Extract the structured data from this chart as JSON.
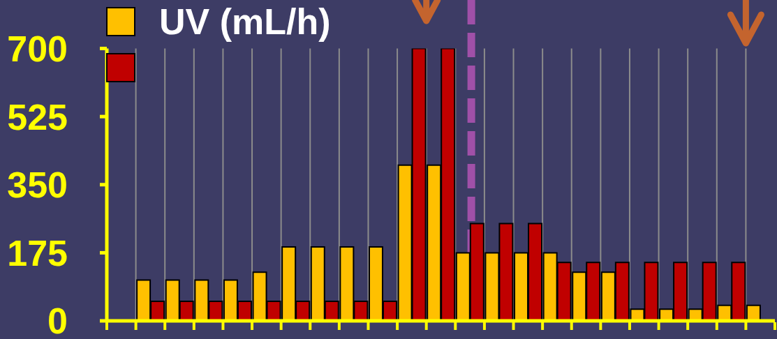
{
  "chart_data": {
    "type": "bar",
    "categories": [
      null,
      null,
      null,
      null,
      null,
      null,
      null,
      null,
      null,
      null,
      null,
      null,
      null,
      null,
      null,
      null,
      null,
      null,
      null,
      null,
      null,
      null,
      null
    ],
    "series": [
      {
        "name": "UV (mL/h)",
        "color": "#ffc000",
        "values": [
          null,
          105,
          105,
          105,
          105,
          125,
          190,
          190,
          190,
          190,
          400,
          400,
          175,
          175,
          175,
          175,
          125,
          125,
          30,
          30,
          30,
          40,
          40
        ]
      },
      {
        "color": "#c00000",
        "values": [
          null,
          50,
          50,
          50,
          50,
          50,
          50,
          50,
          50,
          50,
          700,
          700,
          250,
          250,
          250,
          150,
          150,
          150,
          150,
          150,
          150,
          150,
          null
        ]
      }
    ],
    "ylim": [
      0,
      700
    ],
    "yticks": [
      0,
      175,
      350,
      525,
      700
    ],
    "grid": "x",
    "legend": "top left",
    "tick_labels": "y"
  }
}
